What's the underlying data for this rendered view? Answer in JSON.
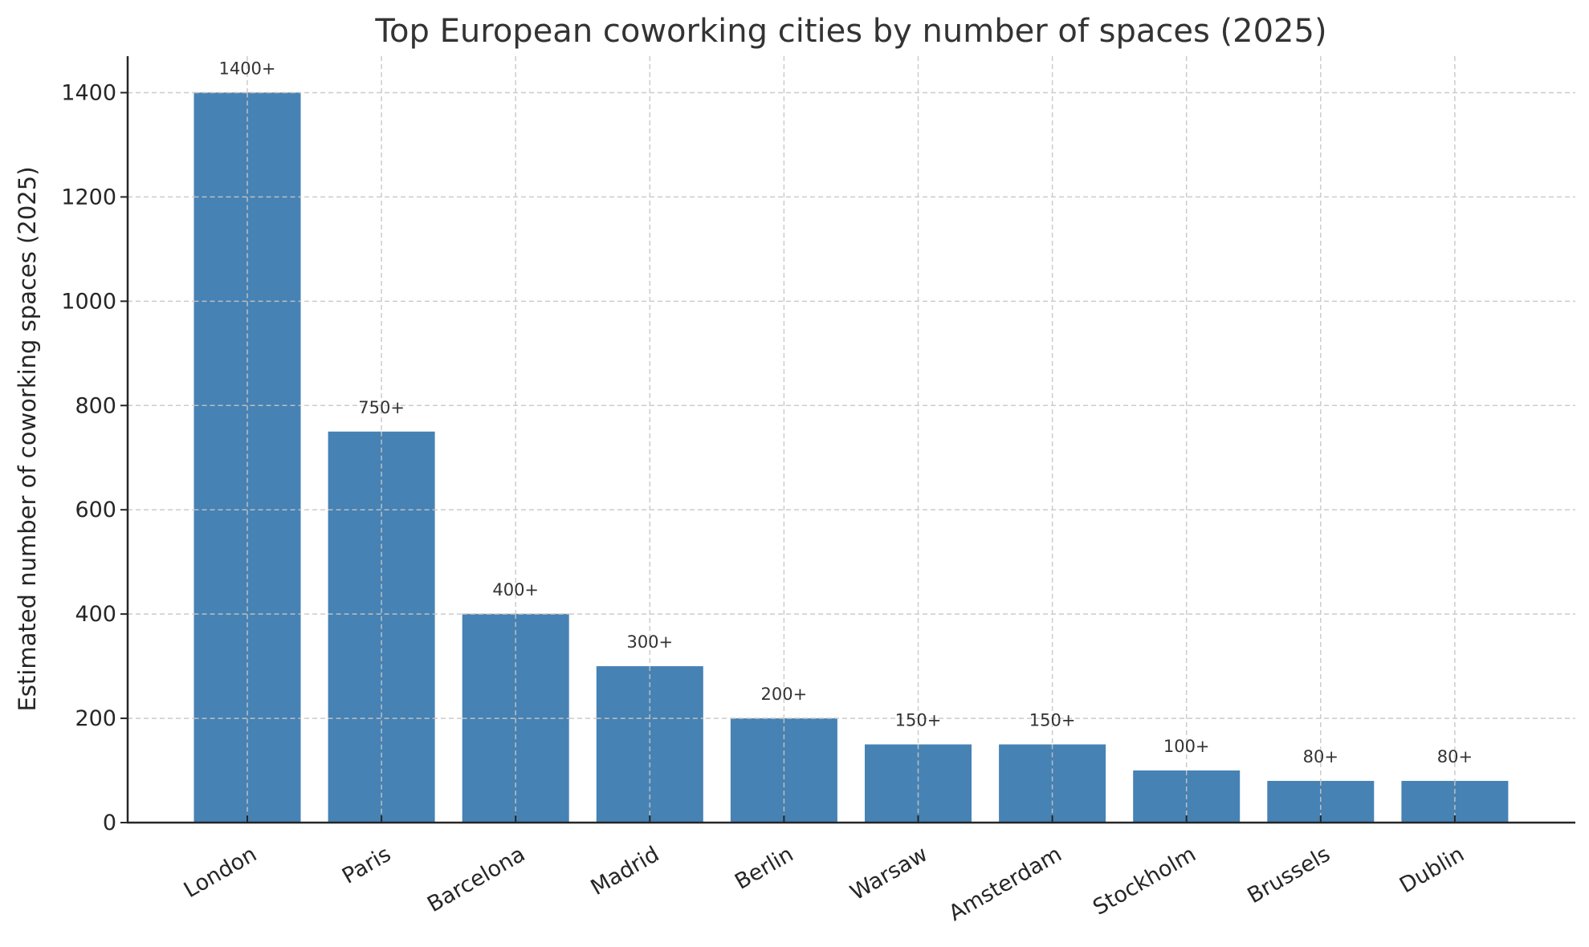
{
  "chart_data": {
    "type": "bar",
    "title": "Top European coworking cities by number of spaces (2025)",
    "xlabel": "",
    "ylabel": "Estimated number of coworking spaces (2025)",
    "categories": [
      "London",
      "Paris",
      "Barcelona",
      "Madrid",
      "Berlin",
      "Warsaw",
      "Amsterdam",
      "Stockholm",
      "Brussels",
      "Dublin"
    ],
    "values": [
      1400,
      750,
      400,
      300,
      200,
      150,
      150,
      100,
      80,
      80
    ],
    "bar_labels": [
      "1400+",
      "750+",
      "400+",
      "300+",
      "200+",
      "150+",
      "150+",
      "100+",
      "80+",
      "80+"
    ],
    "ylim": [
      0,
      1470
    ],
    "yticks": [
      0,
      200,
      400,
      600,
      800,
      1000,
      1200,
      1400
    ],
    "grid": true,
    "grid_style": "dashed",
    "legend": null,
    "xtick_rotation": 30,
    "colors": {
      "bar": "#4682B4",
      "grid": "#cccccc",
      "axis": "#262626",
      "text": "#333333"
    }
  }
}
